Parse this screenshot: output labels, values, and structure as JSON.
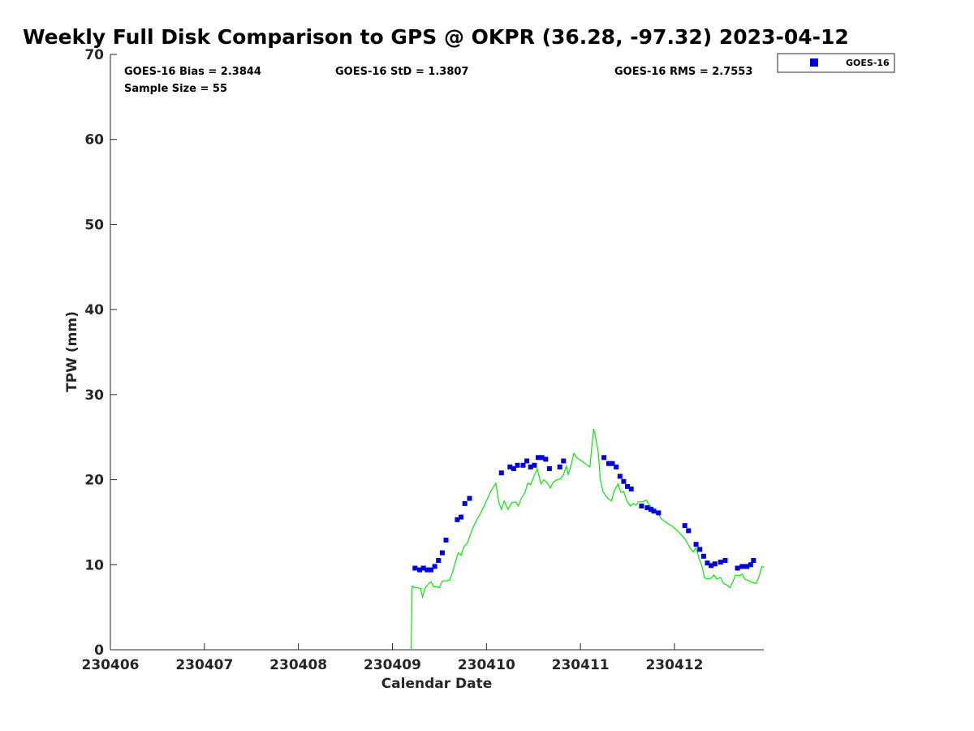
{
  "chart_data": {
    "type": "scatter",
    "title": "Weekly Full Disk Comparison to GPS @ OKPR (36.28, -97.32) 2023-04-12",
    "xlabel": "Calendar Date",
    "ylabel": "TPW (mm)",
    "xlim": [
      230406,
      230412.95
    ],
    "ylim": [
      0,
      70
    ],
    "x_ticks": [
      230406,
      230407,
      230408,
      230409,
      230410,
      230411,
      230412
    ],
    "x_tick_labels": [
      "230406",
      "230407",
      "230408",
      "230409",
      "230410",
      "230411",
      "230412"
    ],
    "y_ticks": [
      0,
      10,
      20,
      30,
      40,
      50,
      60,
      70
    ],
    "y_tick_labels": [
      "0",
      "10",
      "20",
      "30",
      "40",
      "50",
      "60",
      "70"
    ],
    "grid": false,
    "legend_position": "top-right",
    "stats": [
      {
        "text": "GOES-16 Bias = 2.3844"
      },
      {
        "text": "GOES-16 StD = 1.3807"
      },
      {
        "text": "GOES-16 RMS = 2.7553"
      },
      {
        "text": "Sample Size = 55"
      }
    ],
    "series": [
      {
        "name": "GOES-16",
        "kind": "scatter",
        "color": "#0000dd",
        "points": [
          [
            230409.24,
            9.6
          ],
          [
            230409.29,
            9.4
          ],
          [
            230409.33,
            9.6
          ],
          [
            230409.37,
            9.4
          ],
          [
            230409.41,
            9.4
          ],
          [
            230409.45,
            9.8
          ],
          [
            230409.49,
            10.5
          ],
          [
            230409.53,
            11.4
          ],
          [
            230409.57,
            12.9
          ],
          [
            230409.69,
            15.3
          ],
          [
            230409.73,
            15.6
          ],
          [
            230409.77,
            17.2
          ],
          [
            230409.82,
            17.8
          ],
          [
            230410.16,
            20.8
          ],
          [
            230410.25,
            21.5
          ],
          [
            230410.29,
            21.3
          ],
          [
            230410.33,
            21.7
          ],
          [
            230410.39,
            21.7
          ],
          [
            230410.43,
            22.2
          ],
          [
            230410.47,
            21.5
          ],
          [
            230410.51,
            21.7
          ],
          [
            230410.55,
            22.6
          ],
          [
            230410.59,
            22.6
          ],
          [
            230410.63,
            22.4
          ],
          [
            230410.67,
            21.3
          ],
          [
            230410.78,
            21.5
          ],
          [
            230410.82,
            22.2
          ],
          [
            230411.25,
            22.6
          ],
          [
            230411.3,
            21.9
          ],
          [
            230411.34,
            21.9
          ],
          [
            230411.38,
            21.5
          ],
          [
            230411.42,
            20.4
          ],
          [
            230411.46,
            19.8
          ],
          [
            230411.5,
            19.2
          ],
          [
            230411.54,
            18.9
          ],
          [
            230411.65,
            16.9
          ],
          [
            230411.71,
            16.7
          ],
          [
            230411.75,
            16.5
          ],
          [
            230411.78,
            16.3
          ],
          [
            230411.83,
            16.1
          ],
          [
            230412.11,
            14.6
          ],
          [
            230412.15,
            14.0
          ],
          [
            230412.23,
            12.4
          ],
          [
            230412.27,
            11.8
          ],
          [
            230412.31,
            11.0
          ],
          [
            230412.35,
            10.2
          ],
          [
            230412.39,
            9.9
          ],
          [
            230412.43,
            10.1
          ],
          [
            230412.49,
            10.3
          ],
          [
            230412.54,
            10.5
          ],
          [
            230412.67,
            9.6
          ],
          [
            230412.72,
            9.8
          ],
          [
            230412.77,
            9.8
          ],
          [
            230412.81,
            10.0
          ],
          [
            230412.84,
            10.5
          ]
        ]
      },
      {
        "kind": "line",
        "color": "#00ee00",
        "points": [
          [
            230409.2,
            0.0
          ],
          [
            230409.21,
            7.5
          ],
          [
            230409.24,
            7.3
          ],
          [
            230409.27,
            7.3
          ],
          [
            230409.3,
            7.2
          ],
          [
            230409.32,
            6.2
          ],
          [
            230409.35,
            7.3
          ],
          [
            230409.38,
            7.7
          ],
          [
            230409.41,
            8.0
          ],
          [
            230409.44,
            7.4
          ],
          [
            230409.47,
            7.4
          ],
          [
            230409.5,
            7.3
          ],
          [
            230409.53,
            8.1
          ],
          [
            230409.57,
            8.1
          ],
          [
            230409.61,
            8.2
          ],
          [
            230409.64,
            9.1
          ],
          [
            230409.67,
            10.3
          ],
          [
            230409.7,
            11.4
          ],
          [
            230409.73,
            11.1
          ],
          [
            230409.76,
            12.1
          ],
          [
            230409.8,
            12.6
          ],
          [
            230409.85,
            14.2
          ],
          [
            230409.9,
            15.3
          ],
          [
            230409.95,
            16.3
          ],
          [
            230410.0,
            17.5
          ],
          [
            230410.05,
            18.7
          ],
          [
            230410.1,
            19.6
          ],
          [
            230410.13,
            17.4
          ],
          [
            230410.16,
            16.5
          ],
          [
            230410.19,
            17.5
          ],
          [
            230410.23,
            16.5
          ],
          [
            230410.27,
            17.3
          ],
          [
            230410.31,
            17.4
          ],
          [
            230410.34,
            16.9
          ],
          [
            230410.37,
            17.8
          ],
          [
            230410.41,
            18.5
          ],
          [
            230410.44,
            19.6
          ],
          [
            230410.47,
            19.4
          ],
          [
            230410.51,
            20.5
          ],
          [
            230410.54,
            21.3
          ],
          [
            230410.58,
            19.5
          ],
          [
            230410.61,
            20.0
          ],
          [
            230410.65,
            19.6
          ],
          [
            230410.68,
            19.0
          ],
          [
            230410.71,
            19.7
          ],
          [
            230410.75,
            20.0
          ],
          [
            230410.79,
            20.1
          ],
          [
            230410.82,
            20.6
          ],
          [
            230410.85,
            21.6
          ],
          [
            230410.87,
            20.6
          ],
          [
            230410.9,
            21.7
          ],
          [
            230410.93,
            23.1
          ],
          [
            230410.96,
            22.6
          ],
          [
            230411.0,
            22.3
          ],
          [
            230411.05,
            21.9
          ],
          [
            230411.1,
            21.5
          ],
          [
            230411.14,
            26.0
          ],
          [
            230411.16,
            25.0
          ],
          [
            230411.19,
            23.2
          ],
          [
            230411.21,
            20.1
          ],
          [
            230411.24,
            18.6
          ],
          [
            230411.27,
            18.1
          ],
          [
            230411.3,
            17.7
          ],
          [
            230411.33,
            17.5
          ],
          [
            230411.36,
            18.7
          ],
          [
            230411.4,
            19.5
          ],
          [
            230411.43,
            18.5
          ],
          [
            230411.46,
            18.6
          ],
          [
            230411.49,
            17.6
          ],
          [
            230411.53,
            16.9
          ],
          [
            230411.56,
            17.2
          ],
          [
            230411.59,
            17.0
          ],
          [
            230411.62,
            17.4
          ],
          [
            230411.66,
            17.4
          ],
          [
            230411.7,
            17.6
          ],
          [
            230411.74,
            16.9
          ],
          [
            230411.78,
            16.6
          ],
          [
            230411.82,
            16.1
          ],
          [
            230411.86,
            15.4
          ],
          [
            230411.92,
            14.9
          ],
          [
            230411.98,
            14.5
          ],
          [
            230412.04,
            13.9
          ],
          [
            230412.1,
            13.2
          ],
          [
            230412.14,
            12.5
          ],
          [
            230412.17,
            11.9
          ],
          [
            230412.2,
            11.5
          ],
          [
            230412.23,
            12.0
          ],
          [
            230412.26,
            10.8
          ],
          [
            230412.29,
            9.9
          ],
          [
            230412.32,
            8.5
          ],
          [
            230412.35,
            8.3
          ],
          [
            230412.39,
            8.4
          ],
          [
            230412.42,
            8.8
          ],
          [
            230412.45,
            8.3
          ],
          [
            230412.49,
            8.5
          ],
          [
            230412.52,
            7.8
          ],
          [
            230412.56,
            7.6
          ],
          [
            230412.59,
            7.3
          ],
          [
            230412.62,
            8.0
          ],
          [
            230412.65,
            8.8
          ],
          [
            230412.69,
            8.7
          ],
          [
            230412.72,
            8.9
          ],
          [
            230412.75,
            8.3
          ],
          [
            230412.79,
            8.1
          ],
          [
            230412.83,
            7.9
          ],
          [
            230412.87,
            7.8
          ],
          [
            230412.9,
            8.6
          ],
          [
            230412.93,
            9.8
          ],
          [
            230412.95,
            9.7
          ]
        ]
      }
    ],
    "legend": [
      {
        "label": "GOES-16",
        "color": "#0000dd",
        "marker": "square"
      }
    ]
  }
}
